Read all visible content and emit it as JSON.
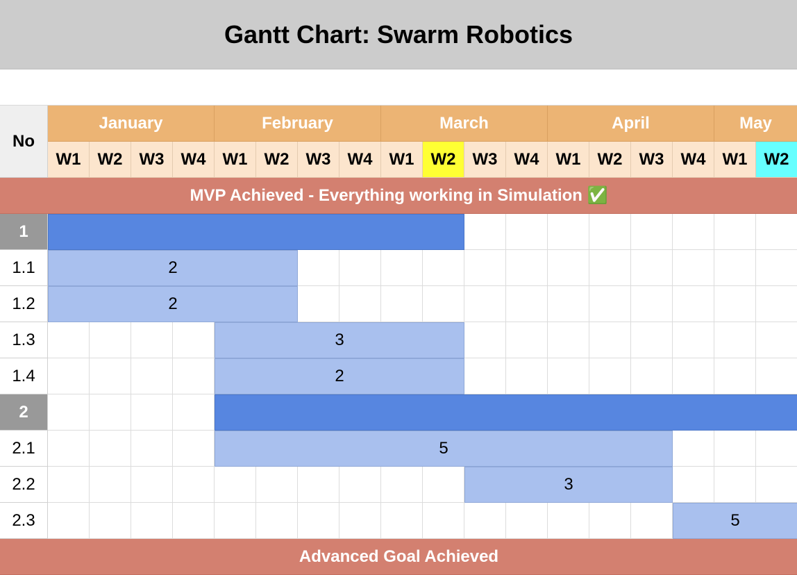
{
  "title": "Gantt Chart: Swarm Robotics",
  "no_header": "No",
  "months": [
    {
      "label": "January",
      "weeks": 4
    },
    {
      "label": "February",
      "weeks": 4
    },
    {
      "label": "March",
      "weeks": 4
    },
    {
      "label": "April",
      "weeks": 4
    },
    {
      "label": "May",
      "weeks": 2
    }
  ],
  "weeks": [
    "W1",
    "W2",
    "W3",
    "W4",
    "W1",
    "W2",
    "W3",
    "W4",
    "W1",
    "W2",
    "W3",
    "W4",
    "W1",
    "W2",
    "W3",
    "W4",
    "W1",
    "W2"
  ],
  "highlighted_weeks": [
    {
      "index": 9,
      "color": "#ffff33"
    },
    {
      "index": 17,
      "color": "#66ffff"
    }
  ],
  "milestones": {
    "top": "MVP Achieved - Everything working in Simulation ✅",
    "bottom": "Advanced Goal Achieved"
  },
  "tasks": [
    {
      "id": "1",
      "parent": true,
      "start": 0,
      "span": 10,
      "label": ""
    },
    {
      "id": "1.1",
      "parent": false,
      "start": 0,
      "span": 6,
      "label": "2"
    },
    {
      "id": "1.2",
      "parent": false,
      "start": 0,
      "span": 6,
      "label": "2"
    },
    {
      "id": "1.3",
      "parent": false,
      "start": 4,
      "span": 6,
      "label": "3"
    },
    {
      "id": "1.4",
      "parent": false,
      "start": 4,
      "span": 6,
      "label": "2"
    },
    {
      "id": "2",
      "parent": true,
      "start": 4,
      "span": 14,
      "label": ""
    },
    {
      "id": "2.1",
      "parent": false,
      "start": 4,
      "span": 11,
      "label": "5"
    },
    {
      "id": "2.2",
      "parent": false,
      "start": 10,
      "span": 5,
      "label": "3"
    },
    {
      "id": "2.3",
      "parent": false,
      "start": 15,
      "span": 3,
      "label": "5"
    }
  ]
}
